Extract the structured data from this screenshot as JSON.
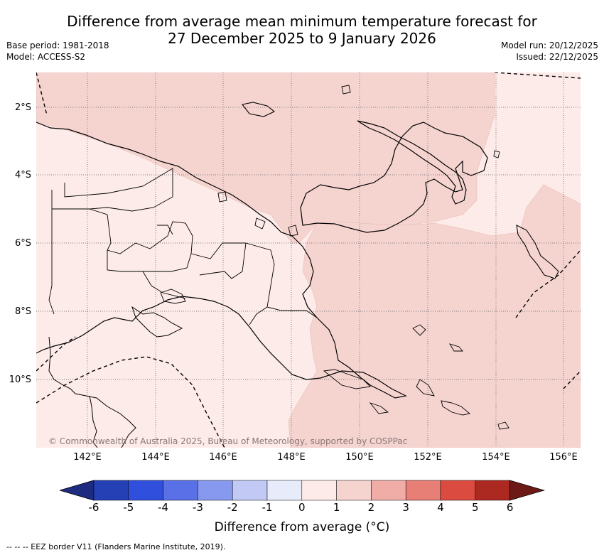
{
  "header": {
    "title_line1": "Difference from average mean minimum temperature forecast for",
    "title_line2": "27 December 2025 to 9 January 2026",
    "base_period": "Base period: 1981-2018",
    "model": "Model: ACCESS-S2",
    "model_run": "Model run: 20/12/2025",
    "issued": "Issued: 22/12/2025"
  },
  "map": {
    "lat_labels": [
      "2°S",
      "4°S",
      "6°S",
      "8°S",
      "10°S"
    ],
    "lon_labels": [
      "142°E",
      "144°E",
      "146°E",
      "148°E",
      "150°E",
      "152°E",
      "154°E",
      "156°E"
    ],
    "copyright": "© Commonwealth of Australia 2025, Bureau of Meteorology, supported by COSPPac",
    "colors": {
      "band_0_1": "#fcebe8",
      "band_1_2": "#f5d4d0",
      "coast": "#000000",
      "gridline": "#555555"
    }
  },
  "colorbar": {
    "ticks": [
      "-6",
      "-5",
      "-4",
      "-3",
      "-2",
      "-1",
      "0",
      "1",
      "2",
      "3",
      "4",
      "5",
      "6"
    ],
    "colors": [
      "#1d2c80",
      "#2540b5",
      "#2f4fdc",
      "#5a70e6",
      "#8799ee",
      "#c1c9f4",
      "#e8ecfa",
      "#fcebe8",
      "#f5d4d0",
      "#f0aca6",
      "#e77f76",
      "#db4b3f",
      "#ac2921",
      "#6d1a16"
    ],
    "title": "Difference from average (°C)"
  },
  "footer": {
    "eez_note": "--  --  -- EEZ border V11 (Flanders Marine Institute, 2019)."
  }
}
